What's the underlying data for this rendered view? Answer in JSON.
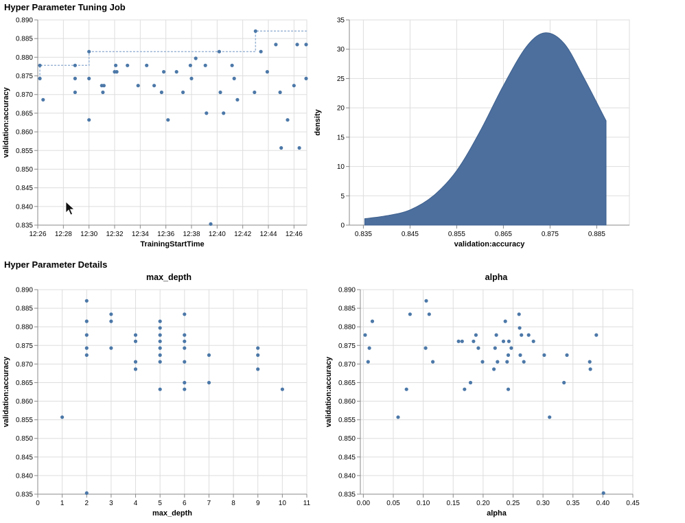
{
  "sections": {
    "tuning_job_title": "Hyper Parameter Tuning Job",
    "details_title": "Hyper Parameter Details"
  },
  "colors": {
    "points": "#4c78a8",
    "area": "#4c6f9e",
    "step_line": "#9cb6d6",
    "grid": "#dddddd"
  },
  "chart_data": [
    {
      "id": "time_scatter",
      "type": "scatter",
      "title": "",
      "xlabel": "TrainingStartTime",
      "ylabel": "validation:accuracy",
      "x_unit": "time",
      "xlim": [
        "12:26",
        "12:47"
      ],
      "ylim": [
        0.835,
        0.89
      ],
      "grid": true,
      "x_ticks": [
        "12:26",
        "12:28",
        "12:30",
        "12:32",
        "12:34",
        "12:36",
        "12:38",
        "12:40",
        "12:42",
        "12:44",
        "12:46"
      ],
      "y_ticks": [
        "0.835",
        "0.840",
        "0.845",
        "0.850",
        "0.855",
        "0.860",
        "0.865",
        "0.870",
        "0.875",
        "0.880",
        "0.885",
        "0.890"
      ],
      "points": [
        {
          "x": "12:26:10",
          "y": 0.8743
        },
        {
          "x": "12:26:10",
          "y": 0.8778
        },
        {
          "x": "12:26:25",
          "y": 0.8686
        },
        {
          "x": "12:28:55",
          "y": 0.8778
        },
        {
          "x": "12:28:55",
          "y": 0.8743
        },
        {
          "x": "12:28:55",
          "y": 0.8706
        },
        {
          "x": "12:30:00",
          "y": 0.8815
        },
        {
          "x": "12:30:00",
          "y": 0.8743
        },
        {
          "x": "12:30:00",
          "y": 0.8632
        },
        {
          "x": "12:31:00",
          "y": 0.8724
        },
        {
          "x": "12:31:05",
          "y": 0.8706
        },
        {
          "x": "12:31:10",
          "y": 0.8724
        },
        {
          "x": "12:32:00",
          "y": 0.8761
        },
        {
          "x": "12:32:05",
          "y": 0.8778
        },
        {
          "x": "12:32:10",
          "y": 0.8761
        },
        {
          "x": "12:33:00",
          "y": 0.8778
        },
        {
          "x": "12:33:50",
          "y": 0.8724
        },
        {
          "x": "12:34:30",
          "y": 0.8778
        },
        {
          "x": "12:35:05",
          "y": 0.8724
        },
        {
          "x": "12:35:40",
          "y": 0.8706
        },
        {
          "x": "12:35:50",
          "y": 0.8761
        },
        {
          "x": "12:36:10",
          "y": 0.8632
        },
        {
          "x": "12:36:50",
          "y": 0.8761
        },
        {
          "x": "12:37:20",
          "y": 0.8706
        },
        {
          "x": "12:37:55",
          "y": 0.8778
        },
        {
          "x": "12:38:00",
          "y": 0.8743
        },
        {
          "x": "12:38:20",
          "y": 0.8797
        },
        {
          "x": "12:39:05",
          "y": 0.8778
        },
        {
          "x": "12:39:10",
          "y": 0.865
        },
        {
          "x": "12:39:30",
          "y": 0.8353
        },
        {
          "x": "12:40:10",
          "y": 0.8815
        },
        {
          "x": "12:40:15",
          "y": 0.8706
        },
        {
          "x": "12:40:30",
          "y": 0.865
        },
        {
          "x": "12:41:10",
          "y": 0.8778
        },
        {
          "x": "12:41:20",
          "y": 0.8743
        },
        {
          "x": "12:41:35",
          "y": 0.8686
        },
        {
          "x": "12:42:55",
          "y": 0.8706
        },
        {
          "x": "12:43:00",
          "y": 0.887
        },
        {
          "x": "12:43:25",
          "y": 0.8815
        },
        {
          "x": "12:43:55",
          "y": 0.8761
        },
        {
          "x": "12:44:35",
          "y": 0.8834
        },
        {
          "x": "12:44:55",
          "y": 0.8706
        },
        {
          "x": "12:45:00",
          "y": 0.8557
        },
        {
          "x": "12:45:30",
          "y": 0.8632
        },
        {
          "x": "12:46:00",
          "y": 0.8724
        },
        {
          "x": "12:46:15",
          "y": 0.8834
        },
        {
          "x": "12:46:25",
          "y": 0.8557
        },
        {
          "x": "12:47:40",
          "y": 0.8743
        },
        {
          "x": "12:47:50",
          "y": 0.8834
        }
      ],
      "best_so_far": [
        {
          "x": "12:26:10",
          "y": 0.8743
        },
        {
          "x": "12:26:10",
          "y": 0.8778
        },
        {
          "x": "12:30:00",
          "y": 0.8778
        },
        {
          "x": "12:30:00",
          "y": 0.8815
        },
        {
          "x": "12:43:00",
          "y": 0.8815
        },
        {
          "x": "12:43:00",
          "y": 0.887
        },
        {
          "x": "12:48:00",
          "y": 0.887
        }
      ]
    },
    {
      "id": "density",
      "type": "area",
      "title": "",
      "xlabel": "validation:accuracy",
      "ylabel": "density",
      "xlim": [
        0.832,
        0.892
      ],
      "ylim": [
        0,
        35
      ],
      "grid": true,
      "x_ticks": [
        "0.835",
        "0.845",
        "0.855",
        "0.865",
        "0.875",
        "0.885"
      ],
      "y_ticks": [
        "0",
        "5",
        "10",
        "15",
        "20",
        "25",
        "30",
        "35"
      ],
      "x": [
        0.8353,
        0.84,
        0.845,
        0.85,
        0.855,
        0.86,
        0.865,
        0.87,
        0.874,
        0.878,
        0.882,
        0.887
      ],
      "values": [
        1.1,
        1.6,
        2.6,
        5.0,
        9.3,
        16.0,
        23.8,
        30.5,
        32.8,
        31.0,
        25.5,
        17.8
      ]
    },
    {
      "id": "max_depth",
      "type": "scatter",
      "title": "max_depth",
      "xlabel": "max_depth",
      "ylabel": "validation:accuracy",
      "xlim": [
        0,
        11
      ],
      "ylim": [
        0.835,
        0.89
      ],
      "grid": true,
      "x_ticks": [
        "0",
        "1",
        "2",
        "3",
        "4",
        "5",
        "6",
        "7",
        "8",
        "9",
        "10",
        "11"
      ],
      "y_ticks": [
        "0.835",
        "0.840",
        "0.845",
        "0.850",
        "0.855",
        "0.860",
        "0.865",
        "0.870",
        "0.875",
        "0.880",
        "0.885",
        "0.890"
      ],
      "points": [
        {
          "x": 1,
          "y": 0.8557
        },
        {
          "x": 2,
          "y": 0.887
        },
        {
          "x": 2,
          "y": 0.8815
        },
        {
          "x": 2,
          "y": 0.8778
        },
        {
          "x": 2,
          "y": 0.8743
        },
        {
          "x": 2,
          "y": 0.8724
        },
        {
          "x": 2,
          "y": 0.8353
        },
        {
          "x": 3,
          "y": 0.8834
        },
        {
          "x": 3,
          "y": 0.8815
        },
        {
          "x": 3,
          "y": 0.8743
        },
        {
          "x": 4,
          "y": 0.8778
        },
        {
          "x": 4,
          "y": 0.8761
        },
        {
          "x": 4,
          "y": 0.8706
        },
        {
          "x": 4,
          "y": 0.8686
        },
        {
          "x": 5,
          "y": 0.8815
        },
        {
          "x": 5,
          "y": 0.8797
        },
        {
          "x": 5,
          "y": 0.8778
        },
        {
          "x": 5,
          "y": 0.8761
        },
        {
          "x": 5,
          "y": 0.8743
        },
        {
          "x": 5,
          "y": 0.8724
        },
        {
          "x": 5,
          "y": 0.8706
        },
        {
          "x": 5,
          "y": 0.8632
        },
        {
          "x": 6,
          "y": 0.8834
        },
        {
          "x": 6,
          "y": 0.8778
        },
        {
          "x": 6,
          "y": 0.8761
        },
        {
          "x": 6,
          "y": 0.8743
        },
        {
          "x": 6,
          "y": 0.8706
        },
        {
          "x": 6,
          "y": 0.865
        },
        {
          "x": 6,
          "y": 0.8632
        },
        {
          "x": 7,
          "y": 0.8724
        },
        {
          "x": 7,
          "y": 0.865
        },
        {
          "x": 9,
          "y": 0.8743
        },
        {
          "x": 9,
          "y": 0.8724
        },
        {
          "x": 9,
          "y": 0.8686
        },
        {
          "x": 10,
          "y": 0.8632
        }
      ]
    },
    {
      "id": "alpha",
      "type": "scatter",
      "title": "alpha",
      "xlabel": "alpha",
      "ylabel": "validation:accuracy",
      "xlim": [
        -0.005,
        0.45
      ],
      "ylim": [
        0.835,
        0.89
      ],
      "grid": true,
      "x_ticks": [
        "0.00",
        "0.05",
        "0.10",
        "0.15",
        "0.20",
        "0.25",
        "0.30",
        "0.35",
        "0.40",
        "0.45"
      ],
      "y_ticks": [
        "0.835",
        "0.840",
        "0.845",
        "0.850",
        "0.855",
        "0.860",
        "0.865",
        "0.870",
        "0.875",
        "0.880",
        "0.885",
        "0.890"
      ],
      "points": [
        {
          "x": 0.003,
          "y": 0.8778
        },
        {
          "x": 0.008,
          "y": 0.8706
        },
        {
          "x": 0.01,
          "y": 0.8743
        },
        {
          "x": 0.015,
          "y": 0.8815
        },
        {
          "x": 0.058,
          "y": 0.8557
        },
        {
          "x": 0.072,
          "y": 0.8632
        },
        {
          "x": 0.078,
          "y": 0.8834
        },
        {
          "x": 0.104,
          "y": 0.8743
        },
        {
          "x": 0.105,
          "y": 0.887
        },
        {
          "x": 0.11,
          "y": 0.8834
        },
        {
          "x": 0.116,
          "y": 0.8706
        },
        {
          "x": 0.159,
          "y": 0.8761
        },
        {
          "x": 0.165,
          "y": 0.8761
        },
        {
          "x": 0.169,
          "y": 0.8632
        },
        {
          "x": 0.179,
          "y": 0.865
        },
        {
          "x": 0.184,
          "y": 0.8761
        },
        {
          "x": 0.188,
          "y": 0.8778
        },
        {
          "x": 0.192,
          "y": 0.8743
        },
        {
          "x": 0.199,
          "y": 0.8706
        },
        {
          "x": 0.218,
          "y": 0.8686
        },
        {
          "x": 0.22,
          "y": 0.8743
        },
        {
          "x": 0.222,
          "y": 0.8778
        },
        {
          "x": 0.224,
          "y": 0.8706
        },
        {
          "x": 0.234,
          "y": 0.8761
        },
        {
          "x": 0.237,
          "y": 0.8815
        },
        {
          "x": 0.24,
          "y": 0.8706
        },
        {
          "x": 0.242,
          "y": 0.8724
        },
        {
          "x": 0.242,
          "y": 0.8632
        },
        {
          "x": 0.243,
          "y": 0.8761
        },
        {
          "x": 0.247,
          "y": 0.8743
        },
        {
          "x": 0.26,
          "y": 0.8834
        },
        {
          "x": 0.261,
          "y": 0.8797
        },
        {
          "x": 0.262,
          "y": 0.8724
        },
        {
          "x": 0.264,
          "y": 0.8778
        },
        {
          "x": 0.268,
          "y": 0.8706
        },
        {
          "x": 0.276,
          "y": 0.8778
        },
        {
          "x": 0.284,
          "y": 0.8761
        },
        {
          "x": 0.302,
          "y": 0.8724
        },
        {
          "x": 0.311,
          "y": 0.8557
        },
        {
          "x": 0.335,
          "y": 0.865
        },
        {
          "x": 0.34,
          "y": 0.8724
        },
        {
          "x": 0.378,
          "y": 0.8706
        },
        {
          "x": 0.379,
          "y": 0.8686
        },
        {
          "x": 0.389,
          "y": 0.8778
        },
        {
          "x": 0.401,
          "y": 0.8353
        }
      ]
    }
  ]
}
